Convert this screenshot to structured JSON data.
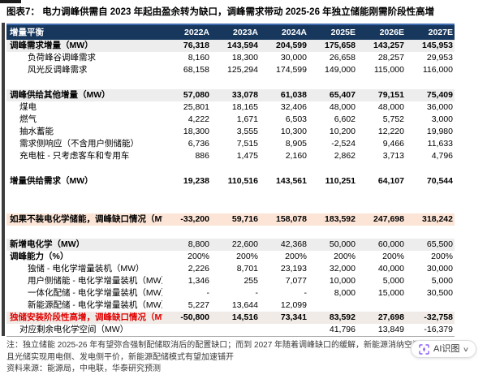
{
  "figure": {
    "title": "图表7：  电力调峰供需自 2023 年起由盈余转为缺口，调峰需求带动 2025-26 年独立储能刚需阶段性高增"
  },
  "table": {
    "header": [
      "增量平衡",
      "2022A",
      "2023A",
      "2024A",
      "2025E",
      "2026E",
      "2027E"
    ],
    "rows": [
      {
        "label": "调峰需求增量（MW）",
        "values": [
          "76,318",
          "143,594",
          "204,599",
          "175,658",
          "143,257",
          "145,953"
        ],
        "style": "section"
      },
      {
        "label": "负荷峰谷调峰需求",
        "values": [
          "8,160",
          "18,300",
          "30,000",
          "26,658",
          "28,257",
          "29,953"
        ],
        "style": "sub2"
      },
      {
        "label": "风光反调峰需求",
        "values": [
          "68,158",
          "125,294",
          "174,599",
          "149,000",
          "115,000",
          "116,000"
        ],
        "style": "sub2"
      },
      {
        "style": "spacer"
      },
      {
        "label": "调峰供给其他增量（MW）",
        "values": [
          "57,080",
          "33,078",
          "61,038",
          "65,407",
          "79,151",
          "75,409"
        ],
        "style": "section"
      },
      {
        "label": "煤电",
        "values": [
          "25,801",
          "18,165",
          "32,406",
          "48,000",
          "48,000",
          "36,000"
        ],
        "style": "sub1"
      },
      {
        "label": "燃气",
        "values": [
          "4,222",
          "1,671",
          "6,503",
          "6,602",
          "5,752",
          "3,000"
        ],
        "style": "sub1"
      },
      {
        "label": "抽水蓄能",
        "values": [
          "18,300",
          "3,555",
          "10,300",
          "10,200",
          "12,220",
          "19,980"
        ],
        "style": "sub1"
      },
      {
        "label": "需求侧响应（不含用户侧储能）",
        "values": [
          "6,736",
          "7,515",
          "8,905",
          "-2,524",
          "9,466",
          "11,633"
        ],
        "style": "sub1"
      },
      {
        "label": "充电桩 - 只考虑客车和专用车",
        "values": [
          "886",
          "1,475",
          "2,160",
          "2,862",
          "3,713",
          "4,796"
        ],
        "style": "sub1"
      },
      {
        "style": "spacer"
      },
      {
        "label": "增量供给需求（MW）",
        "values": [
          "19,238",
          "110,516",
          "143,561",
          "110,251",
          "64,107",
          "70,544"
        ],
        "style": "total"
      },
      {
        "style": "spacer-lg"
      },
      {
        "label": "如果不装电化学储能，调峰缺口情况（MW）",
        "values": [
          "-33,200",
          "59,716",
          "158,078",
          "183,592",
          "247,698",
          "318,242"
        ],
        "style": "peach"
      },
      {
        "style": "spacer"
      },
      {
        "label": "新增电化学（MW）",
        "values": [
          "8,800",
          "22,600",
          "42,368",
          "50,000",
          "60,000",
          "65,500"
        ],
        "style": "param-gray"
      },
      {
        "label": "调峰能力（%）",
        "values": [
          "200%",
          "200%",
          "200%",
          "200%",
          "200%",
          "200%"
        ],
        "style": "param"
      },
      {
        "label": "独储 - 电化学增量装机（MW）",
        "values": [
          "2,226",
          "8,701",
          "23,193",
          "32,000",
          "40,000",
          "30,000"
        ],
        "style": "sub2"
      },
      {
        "label": "用户侧储能 - 电化学增量装机（MW）",
        "values": [
          "1,346",
          "255",
          "7,077",
          "10,000",
          "5,000",
          "5,000"
        ],
        "style": "sub2"
      },
      {
        "label": "一体化配储 - 电化学增量装机（MW）",
        "values": [
          "-",
          "-",
          "-",
          "8,000",
          "15,000",
          "30,500"
        ],
        "style": "sub2"
      },
      {
        "label": "新能源配储 - 电化学增量装机（MW）",
        "values": [
          "5,227",
          "13,644",
          "12,099",
          "",
          "",
          ""
        ],
        "style": "sub2"
      },
      {
        "label": "独储安装阶段性高增，调峰缺口情况（MW）",
        "values": [
          "-50,800",
          "14,516",
          "73,341",
          "83,592",
          "27,698",
          "-32,758"
        ],
        "style": "red"
      },
      {
        "label": "对应剩余电化学空间（MW）",
        "values": [
          "",
          "",
          "",
          "41,796",
          "13,849",
          "-16,379"
        ],
        "style": "sub1"
      }
    ]
  },
  "notes": {
    "line1": "注：独立储能 2025-26 年有望弥合强制配储取消后的配置缺口；而到 2027 年随着调峰缺口的缓解，新能源消纳空间",
    "line2": "且光储实现用电侧、发电侧平价，新能源配储模式有望加速铺开",
    "source": "资料来源：能源局，中电联，华泰研究预测"
  },
  "ai_button": {
    "label": "AI识图",
    "caret": "∨"
  },
  "colors": {
    "header_navy": "#17375c",
    "header_topline_blue": "#3f6bb0",
    "section_gray": "#ededed",
    "highlight_peach": "#fce4d6",
    "highlight_warm": "#f0ebe6",
    "red_text": "#e00000",
    "ai_icon_purple": "#8b5cf6"
  }
}
